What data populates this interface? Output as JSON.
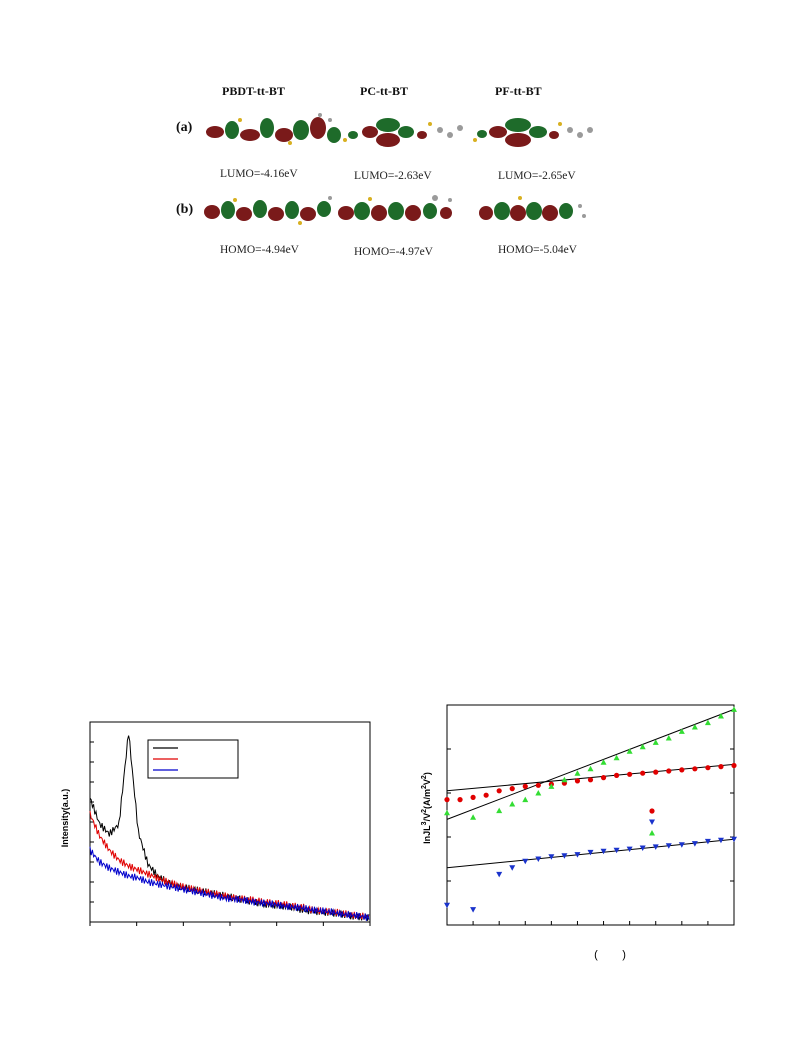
{
  "figure_orbitals": {
    "headers": [
      "PBDT-tt-BT",
      "PC-tt-BT",
      "PF-tt-BT"
    ],
    "row_a_label": "(a)",
    "row_b_label": "(b)",
    "lumo": [
      "LUMO=-4.16eV",
      "LUMO=-2.63eV",
      "LUMO=-2.65eV"
    ],
    "homo": [
      "HOMO=-4.94eV",
      "HOMO=-4.97eV",
      "HOMO=-5.04eV"
    ],
    "colors": {
      "lobe_red": "#7a1a1a",
      "lobe_green": "#1e6b2a",
      "atom_gray": "#9a9a9a",
      "atom_yellow": "#d8b020"
    }
  },
  "chart_data": [
    {
      "type": "line",
      "ylabel": "Intensity(a.u.)",
      "xlabel": "",
      "legend": {
        "placement": "top-center",
        "entries": [
          {
            "color": "#000000"
          },
          {
            "color": "#e00000"
          },
          {
            "color": "#0000cc"
          }
        ]
      },
      "x": [
        1,
        2,
        3,
        4,
        5,
        6,
        7,
        8,
        9,
        10,
        11,
        12,
        13,
        14,
        15,
        16,
        17,
        18,
        19,
        20,
        21,
        22,
        23,
        24,
        25,
        26,
        27,
        28,
        29,
        30
      ],
      "xlim": [
        1,
        30
      ],
      "ylim": [
        0,
        10
      ],
      "series": [
        {
          "color": "#000000",
          "values": [
            6.2,
            4.9,
            4.4,
            4.9,
            9.5,
            4.5,
            2.9,
            2.3,
            2.0,
            1.8,
            1.7,
            1.6,
            1.5,
            1.4,
            1.3,
            1.2,
            1.1,
            1.0,
            0.9,
            0.85,
            0.8,
            0.75,
            0.6,
            0.55,
            0.5,
            0.45,
            0.4,
            0.3,
            0.25,
            0.2
          ]
        },
        {
          "color": "#e00000",
          "values": [
            5.4,
            4.3,
            3.6,
            3.1,
            2.8,
            2.6,
            2.4,
            2.2,
            2.0,
            1.85,
            1.7,
            1.6,
            1.5,
            1.4,
            1.3,
            1.2,
            1.15,
            1.1,
            1.0,
            0.95,
            0.9,
            0.8,
            0.75,
            0.6,
            0.55,
            0.5,
            0.45,
            0.35,
            0.3,
            0.25
          ]
        },
        {
          "color": "#0000cc",
          "values": [
            3.6,
            3.0,
            2.7,
            2.5,
            2.3,
            2.2,
            2.0,
            1.9,
            1.8,
            1.7,
            1.6,
            1.5,
            1.4,
            1.3,
            1.2,
            1.15,
            1.1,
            1.0,
            0.95,
            0.9,
            0.8,
            0.75,
            0.7,
            0.6,
            0.55,
            0.5,
            0.4,
            0.35,
            0.3,
            0.2
          ]
        }
      ]
    },
    {
      "type": "scatter",
      "ylabel": "lnJL3/V2(A/m2V2)",
      "ylabel_main": "lnJL",
      "ylabel_sup1": "3",
      "ylabel_mid": "/V",
      "ylabel_sup2": "2",
      "ylabel_unit": "(A/m",
      "ylabel_sup3": "2",
      "ylabel_unit2": "V",
      "ylabel_sup4": "2",
      "ylabel_close": ")",
      "xlabel": "(        )",
      "xlim": [
        0,
        22
      ],
      "ylim": [
        0,
        10
      ],
      "grid": false,
      "legend": {
        "placement": "center-right",
        "entries": [
          {
            "color": "#e00000",
            "marker": "circle"
          },
          {
            "color": "#1a33cc",
            "marker": "triangle-down"
          },
          {
            "color": "#33dd33",
            "marker": "triangle-up"
          }
        ]
      },
      "series": [
        {
          "color": "#e00000",
          "marker": "circle",
          "x": [
            0,
            1,
            2,
            3,
            4,
            5,
            6,
            7,
            8,
            9,
            10,
            11,
            12,
            13,
            14,
            15,
            16,
            17,
            18,
            19,
            20,
            21,
            22
          ],
          "y": [
            5.7,
            5.7,
            5.8,
            5.9,
            6.1,
            6.2,
            6.3,
            6.35,
            6.4,
            6.45,
            6.55,
            6.6,
            6.7,
            6.8,
            6.85,
            6.9,
            6.95,
            7.0,
            7.05,
            7.1,
            7.15,
            7.2,
            7.25
          ],
          "fit": [
            [
              0,
              6.1
            ],
            [
              22,
              7.3
            ]
          ]
        },
        {
          "color": "#1a33cc",
          "marker": "triangle-down",
          "x": [
            0,
            2,
            4,
            5,
            6,
            7,
            8,
            9,
            10,
            11,
            12,
            13,
            14,
            15,
            16,
            17,
            18,
            19,
            20,
            21,
            22
          ],
          "y": [
            0.9,
            0.7,
            2.3,
            2.6,
            2.9,
            3.0,
            3.1,
            3.15,
            3.2,
            3.3,
            3.35,
            3.4,
            3.45,
            3.5,
            3.55,
            3.6,
            3.65,
            3.7,
            3.8,
            3.85,
            3.9
          ],
          "fit": [
            [
              0,
              2.6
            ],
            [
              22,
              3.9
            ]
          ]
        },
        {
          "color": "#33dd33",
          "marker": "triangle-up",
          "x": [
            0,
            2,
            4,
            5,
            6,
            7,
            8,
            9,
            10,
            11,
            12,
            13,
            14,
            15,
            16,
            17,
            18,
            19,
            20,
            21,
            22
          ],
          "y": [
            5.1,
            4.9,
            5.2,
            5.5,
            5.7,
            6.0,
            6.3,
            6.6,
            6.9,
            7.1,
            7.4,
            7.6,
            7.9,
            8.1,
            8.3,
            8.5,
            8.8,
            9.0,
            9.2,
            9.5,
            9.8
          ],
          "fit": [
            [
              0,
              4.8
            ],
            [
              22,
              9.8
            ]
          ]
        }
      ]
    }
  ]
}
